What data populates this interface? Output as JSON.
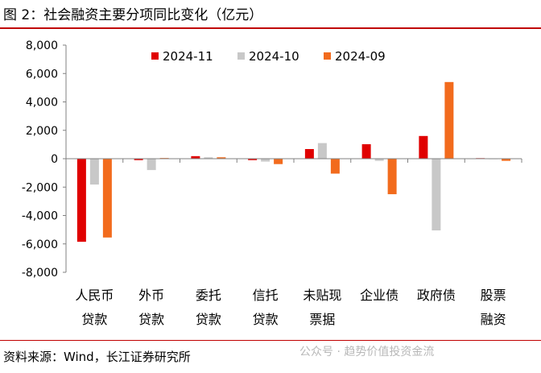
{
  "title": "图 2：社会融资主要分项同比变化（亿元）",
  "source": "资料来源：Wind，长江证券研究所",
  "watermark": "公众号 · 趋势价值投资金流",
  "colors": {
    "s2024_11": "#e00000",
    "s2024_10": "#c8c8c8",
    "s2024_09": "#f26b1d",
    "rule": "#c00000"
  },
  "chart_data": {
    "type": "bar",
    "categories": [
      [
        "人民币",
        "贷款"
      ],
      [
        "外币",
        "贷款"
      ],
      [
        "委托",
        "贷款"
      ],
      [
        "信托",
        "贷款"
      ],
      [
        "未贴现",
        "票据"
      ],
      [
        "企业债"
      ],
      [
        "政府债"
      ],
      [
        "股票",
        "融资"
      ]
    ],
    "series": [
      {
        "name": "2024-11",
        "values": [
          -5850,
          -100,
          180,
          -100,
          680,
          1020,
          1600,
          40
        ]
      },
      {
        "name": "2024-10",
        "values": [
          -1820,
          -800,
          100,
          -200,
          1100,
          -150,
          -5050,
          0
        ]
      },
      {
        "name": "2024-09",
        "values": [
          -5550,
          50,
          100,
          -380,
          -1050,
          -2500,
          5400,
          -150
        ]
      }
    ],
    "ylim": [
      -8000,
      8000
    ],
    "yticks": [
      "8,000",
      "6,000",
      "4,000",
      "2,000",
      "0",
      "-2,000",
      "-4,000",
      "-6,000",
      "-8,000"
    ],
    "legend_position": "top",
    "grid": false
  }
}
